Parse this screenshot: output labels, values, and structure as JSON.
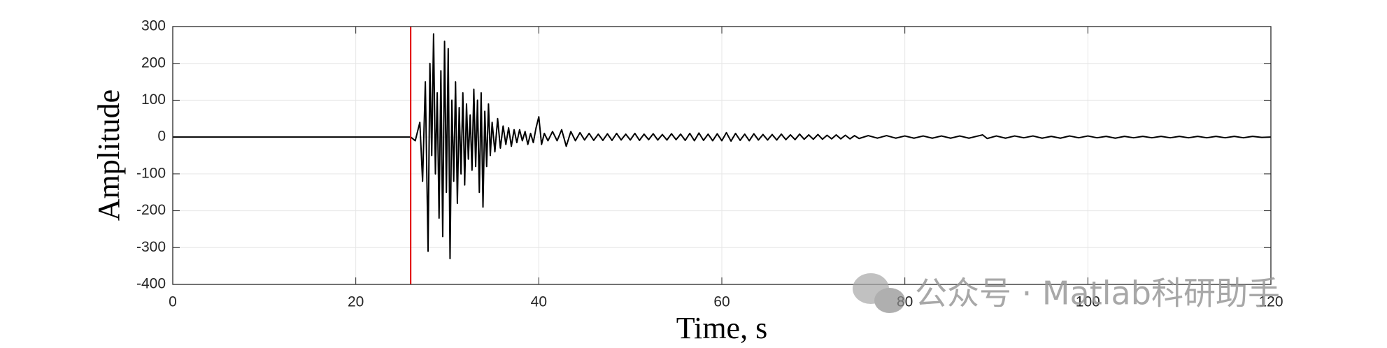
{
  "chart_data": {
    "type": "line",
    "xlabel": "Time, s",
    "ylabel": "Amplitude",
    "watermark": "公众号 · Matlab科研助手",
    "xlim": [
      0,
      120
    ],
    "ylim": [
      -400,
      300
    ],
    "xticks": [
      0,
      20,
      40,
      60,
      80,
      100,
      120
    ],
    "yticks": [
      -400,
      -300,
      -200,
      -100,
      0,
      100,
      200,
      300
    ],
    "grid": true,
    "vline": {
      "x": 26,
      "color": "#e00000"
    },
    "series": [
      {
        "color": "#000000",
        "x": [
          0,
          25,
          26,
          26.5,
          27,
          27.3,
          27.6,
          27.9,
          28.1,
          28.3,
          28.5,
          28.7,
          28.9,
          29.1,
          29.3,
          29.5,
          29.7,
          29.9,
          30.1,
          30.3,
          30.5,
          30.7,
          30.9,
          31.1,
          31.3,
          31.5,
          31.7,
          31.9,
          32.1,
          32.3,
          32.5,
          32.7,
          32.9,
          33.1,
          33.3,
          33.5,
          33.7,
          33.9,
          34.1,
          34.3,
          34.5,
          34.7,
          34.9,
          35.2,
          35.5,
          35.8,
          36.1,
          36.4,
          36.7,
          37,
          37.3,
          37.6,
          37.9,
          38.2,
          38.5,
          38.8,
          39.1,
          39.4,
          39.7,
          40,
          40.3,
          40.6,
          41,
          41.5,
          42,
          42.5,
          43,
          43.5,
          44,
          44.5,
          45,
          45.5,
          46,
          46.5,
          47,
          47.5,
          48,
          48.5,
          49,
          49.5,
          50,
          50.5,
          51,
          51.5,
          52,
          52.5,
          53,
          53.5,
          54,
          54.5,
          55,
          55.5,
          56,
          56.5,
          57,
          57.5,
          58,
          58.5,
          59,
          59.5,
          60,
          60.5,
          61,
          61.5,
          62,
          62.5,
          63,
          63.5,
          64,
          64.5,
          65,
          65.5,
          66,
          66.5,
          67,
          67.5,
          68,
          68.5,
          69,
          69.5,
          70,
          70.5,
          71,
          71.5,
          72,
          72.5,
          73,
          73.5,
          74,
          74.5,
          75,
          76,
          77,
          78,
          79,
          80,
          81,
          82,
          83,
          84,
          85,
          86,
          87,
          88,
          88.5,
          89,
          90,
          91,
          92,
          93,
          94,
          95,
          96,
          97,
          98,
          99,
          100,
          101,
          102,
          103,
          104,
          105,
          106,
          107,
          108,
          109,
          110,
          111,
          112,
          113,
          114,
          115,
          116,
          117,
          118,
          119,
          120
        ],
        "values": [
          0,
          0,
          0,
          -10,
          40,
          -120,
          150,
          -310,
          200,
          -50,
          280,
          -100,
          120,
          -220,
          180,
          -270,
          260,
          -150,
          240,
          -330,
          100,
          -120,
          150,
          -180,
          80,
          -100,
          120,
          -130,
          90,
          -60,
          60,
          -90,
          130,
          -80,
          100,
          -150,
          120,
          -190,
          70,
          -80,
          90,
          -50,
          40,
          -40,
          50,
          -30,
          30,
          -20,
          25,
          -25,
          20,
          -15,
          20,
          -10,
          15,
          -20,
          10,
          -15,
          25,
          55,
          -20,
          10,
          -10,
          15,
          -10,
          20,
          -25,
          15,
          -10,
          12,
          -8,
          10,
          -9,
          8,
          -9,
          9,
          -9,
          10,
          -8,
          8,
          -8,
          10,
          -9,
          8,
          -7,
          9,
          -8,
          7,
          -8,
          9,
          -7,
          8,
          -9,
          10,
          -10,
          11,
          -9,
          8,
          -10,
          9,
          -10,
          12,
          -11,
          10,
          -9,
          8,
          -10,
          9,
          -8,
          7,
          -8,
          7,
          -8,
          8,
          -7,
          6,
          -7,
          8,
          -6,
          6,
          -6,
          7,
          -6,
          5,
          -5,
          6,
          -5,
          5,
          -5,
          4,
          -4,
          4,
          -3,
          4,
          -3,
          3,
          -3,
          3,
          -3,
          3,
          -3,
          3,
          -3,
          3,
          6,
          -4,
          3,
          -3,
          3,
          -2,
          3,
          -3,
          2,
          -3,
          3,
          -2,
          3,
          -2,
          2,
          -3,
          2,
          -2,
          2,
          -2,
          2,
          -2,
          2,
          -2,
          2,
          -2,
          2,
          -2,
          2,
          -2,
          2,
          -1,
          0
        ]
      }
    ]
  }
}
